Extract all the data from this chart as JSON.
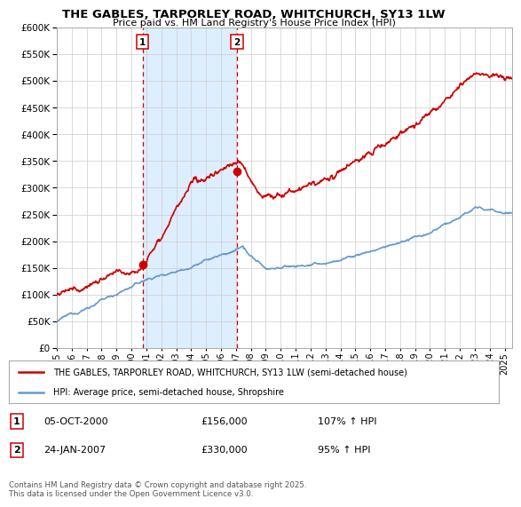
{
  "title": "THE GABLES, TARPORLEY ROAD, WHITCHURCH, SY13 1LW",
  "subtitle": "Price paid vs. HM Land Registry's House Price Index (HPI)",
  "ylim": [
    0,
    600000
  ],
  "yticks": [
    0,
    50000,
    100000,
    150000,
    200000,
    250000,
    300000,
    350000,
    400000,
    450000,
    500000,
    550000,
    600000
  ],
  "xlim_start": 1995.0,
  "xlim_end": 2025.5,
  "background_color": "#ffffff",
  "grid_color": "#cccccc",
  "hpi_color": "#6699cc",
  "price_color": "#cc0000",
  "vline_color": "#cc0000",
  "shade_color": "#ddeeff",
  "transaction1": {
    "date_num": 2000.75,
    "price": 156000,
    "label": "1",
    "date_str": "05-OCT-2000",
    "hpi_pct": "107% ↑ HPI"
  },
  "transaction2": {
    "date_num": 2007.07,
    "price": 330000,
    "label": "2",
    "date_str": "24-JAN-2007",
    "hpi_pct": "95% ↑ HPI"
  },
  "legend_house": "THE GABLES, TARPORLEY ROAD, WHITCHURCH, SY13 1LW (semi-detached house)",
  "legend_hpi": "HPI: Average price, semi-detached house, Shropshire",
  "footnote": "Contains HM Land Registry data © Crown copyright and database right 2025.\nThis data is licensed under the Open Government Licence v3.0."
}
